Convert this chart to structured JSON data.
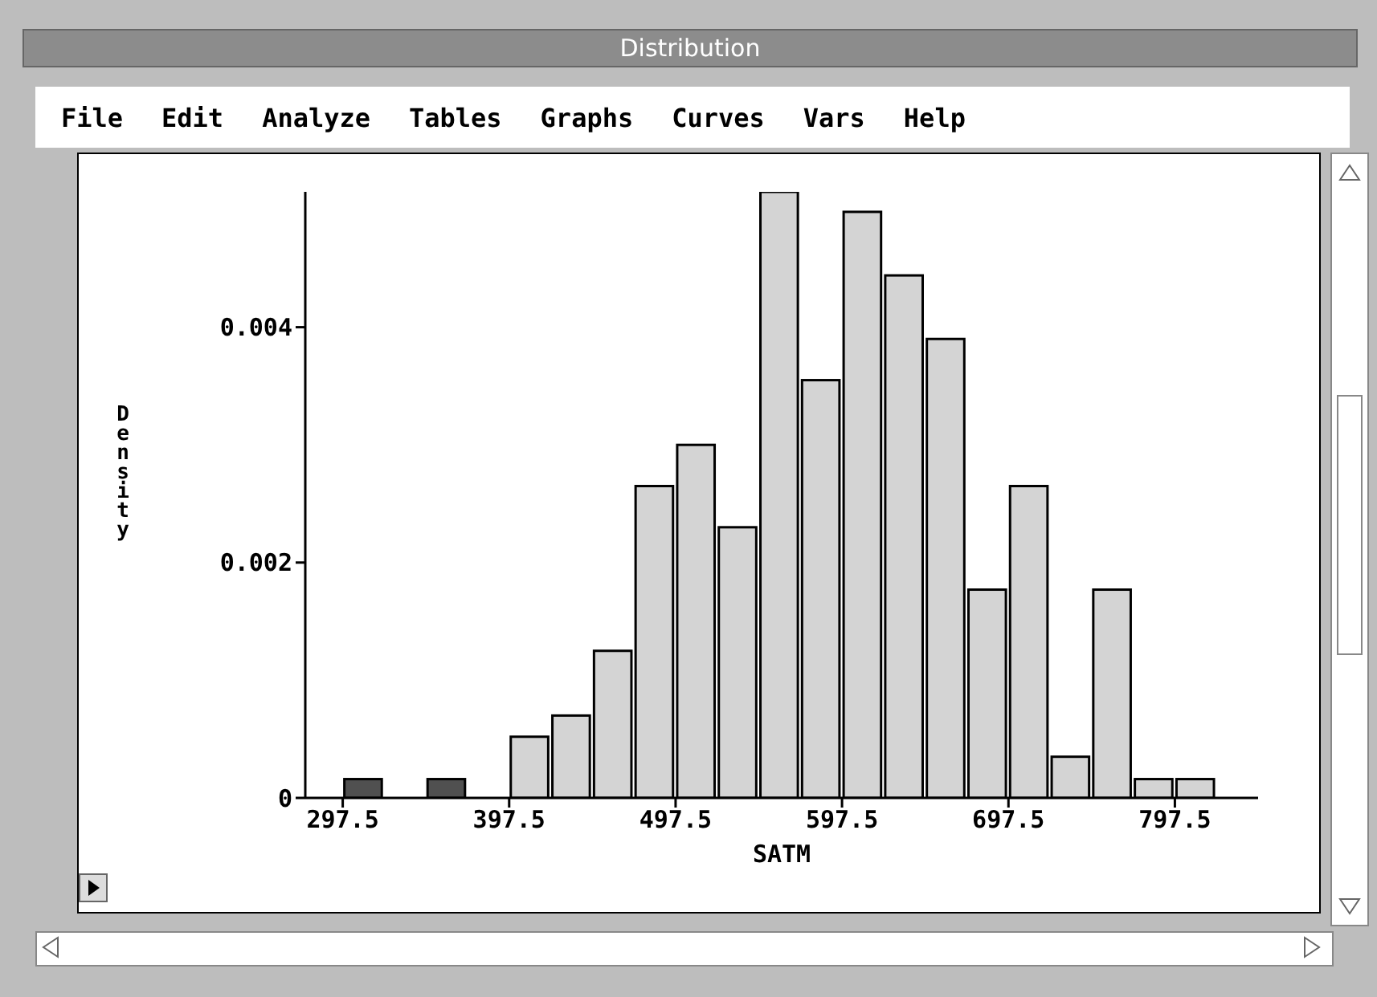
{
  "chart_data": {
    "type": "histogram",
    "title": "Distribution",
    "annotations": [
      "File",
      "Edit",
      "Analyze",
      "Tables",
      "Graphs",
      "Curves",
      "Vars",
      "Help"
    ],
    "xlabel": "SATM",
    "ylabel": "Density",
    "bins": [
      297.5,
      322.5,
      347.5,
      372.5,
      397.5,
      422.5,
      447.5,
      472.5,
      497.5,
      522.5,
      547.5,
      572.5,
      597.5,
      622.5,
      647.5,
      672.5,
      697.5,
      722.5,
      747.5,
      772.5,
      797.5,
      822.5
    ],
    "values": [
      0.00016,
      0,
      0.00016,
      0,
      0.00052,
      0.0007,
      0.00125,
      0.00265,
      0.003,
      0.0023,
      0.00515,
      0.00355,
      0.00498,
      0.00444,
      0.0039,
      0.00177,
      0.00265,
      0.00035,
      0.00177,
      0.00016,
      0.00016
    ],
    "colors": [
      "#505050",
      "#505050",
      "#505050",
      "#505050",
      "#d4d4d4",
      "#d4d4d4",
      "#d4d4d4",
      "#d4d4d4",
      "#d4d4d4",
      "#d4d4d4",
      "#d4d4d4",
      "#d4d4d4",
      "#d4d4d4",
      "#d4d4d4",
      "#d4d4d4",
      "#d4d4d4",
      "#d4d4d4",
      "#d4d4d4",
      "#d4d4d4",
      "#d4d4d4",
      "#d4d4d4"
    ],
    "xlim": [
      275,
      847.5
    ],
    "xticks": [
      297.5,
      397.5,
      497.5,
      597.5,
      697.5,
      797.5
    ],
    "ylim": [
      0,
      0.00515
    ],
    "yticks": [
      0,
      0.002,
      0.004
    ],
    "grid": false,
    "legend": false
  }
}
